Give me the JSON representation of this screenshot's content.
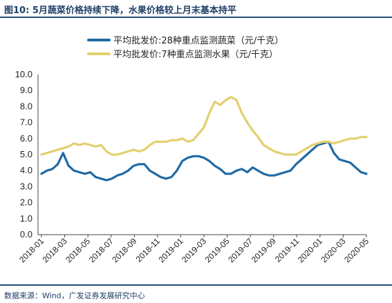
{
  "header": {
    "title": "图10:  5月蔬菜价格持续下降，水果价格较上月末基本持平"
  },
  "footer": {
    "source": "数据来源：Wind，广发证券发展研究中心"
  },
  "colors": {
    "vegetables": "#1f6aa5",
    "fruits": "#e3cf6e",
    "frame": "#1f4e79"
  },
  "chart_data": {
    "type": "line",
    "series": [
      {
        "name": "平均批发价:28种重点监测蔬菜（元/千克）",
        "values": [
          3.8,
          4.0,
          4.1,
          4.4,
          5.1,
          4.3,
          4.0,
          3.9,
          3.8,
          3.9,
          3.6,
          3.5,
          3.4,
          3.5,
          3.7,
          3.8,
          4.0,
          4.3,
          4.4,
          4.4,
          4.0,
          3.8,
          3.6,
          3.5,
          3.6,
          4.0,
          4.6,
          4.8,
          4.9,
          4.9,
          4.8,
          4.6,
          4.3,
          4.1,
          3.8,
          3.8,
          4.0,
          4.1,
          3.9,
          4.2,
          4.0,
          3.8,
          3.7,
          3.7,
          3.8,
          3.9,
          4.0,
          4.4,
          4.7,
          5.0,
          5.3,
          5.6,
          5.7,
          5.8,
          5.1,
          4.7,
          4.6,
          4.5,
          4.2,
          3.9,
          3.8
        ]
      },
      {
        "name": "平均批发价:7种重点监测水果（元/千克）",
        "values": [
          5.0,
          5.1,
          5.2,
          5.3,
          5.4,
          5.5,
          5.7,
          5.6,
          5.7,
          5.6,
          5.5,
          5.6,
          5.2,
          5.0,
          5.0,
          5.1,
          5.2,
          5.3,
          5.2,
          5.3,
          5.6,
          5.8,
          5.8,
          5.8,
          5.9,
          5.9,
          6.0,
          5.8,
          5.9,
          6.3,
          6.7,
          7.6,
          8.3,
          8.1,
          8.4,
          8.6,
          8.4,
          7.6,
          7.0,
          6.5,
          6.1,
          5.6,
          5.4,
          5.2,
          5.1,
          5.0,
          5.0,
          5.0,
          5.2,
          5.4,
          5.6,
          5.7,
          5.8,
          5.8,
          5.7,
          5.8,
          5.9,
          6.0,
          6.0,
          6.1,
          6.1
        ]
      }
    ],
    "x_range": [
      "2018-01",
      "2020-05"
    ],
    "x_tick_labels": [
      "2018-01",
      "2018-03",
      "2018-05",
      "2018-07",
      "2018-09",
      "2018-11",
      "2019-01",
      "2019-03",
      "2019-05",
      "2019-07",
      "2019-09",
      "2019-11",
      "2020-01",
      "2020-03",
      "2020-05"
    ],
    "y_tick_labels": [
      "0.0",
      "1.0",
      "2.0",
      "3.0",
      "4.0",
      "5.0",
      "6.0",
      "7.0",
      "8.0",
      "9.0",
      "10.0"
    ],
    "ylim": [
      0,
      10
    ],
    "grid": false,
    "legend_position": "top-left"
  }
}
